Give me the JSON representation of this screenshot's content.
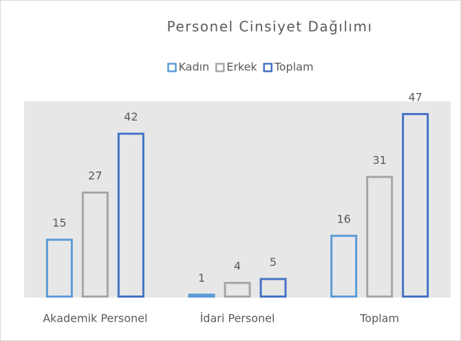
{
  "chart_data": {
    "type": "bar",
    "title": "Personel Cinsiyet Dağılımı",
    "categories": [
      "Akademik Personel",
      "İdari Personel",
      "Toplam"
    ],
    "series": [
      {
        "name": "Kadın",
        "color": "#5b9bd5",
        "values": [
          15,
          1,
          16
        ]
      },
      {
        "name": "Erkek",
        "color": "#a5a5a5",
        "values": [
          27,
          4,
          31
        ]
      },
      {
        "name": "Toplam",
        "color": "#4472c4",
        "values": [
          42,
          5,
          47
        ]
      }
    ],
    "ylim": [
      0,
      50
    ],
    "legend": "top",
    "grid": false
  }
}
